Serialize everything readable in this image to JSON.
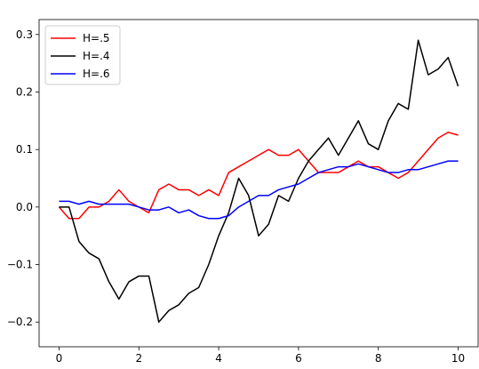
{
  "chart_data": {
    "type": "line",
    "x": [
      0,
      0.25,
      0.5,
      0.75,
      1,
      1.25,
      1.5,
      1.75,
      2,
      2.25,
      2.5,
      2.75,
      3,
      3.25,
      3.5,
      3.75,
      4,
      4.25,
      4.5,
      4.75,
      5,
      5.25,
      5.5,
      5.75,
      6,
      6.25,
      6.5,
      6.75,
      7,
      7.25,
      7.5,
      7.75,
      8,
      8.25,
      8.5,
      8.75,
      9,
      9.25,
      9.5,
      9.75,
      10
    ],
    "series": [
      {
        "name": "H=.5",
        "color": "#ff0000",
        "values": [
          0.0,
          -0.02,
          -0.02,
          0.0,
          0.0,
          0.01,
          0.03,
          0.01,
          0.0,
          -0.01,
          0.03,
          0.04,
          0.03,
          0.03,
          0.02,
          0.03,
          0.02,
          0.06,
          0.07,
          0.08,
          0.09,
          0.1,
          0.09,
          0.09,
          0.1,
          0.08,
          0.06,
          0.06,
          0.06,
          0.07,
          0.08,
          0.07,
          0.07,
          0.06,
          0.05,
          0.06,
          0.08,
          0.1,
          0.12,
          0.13,
          0.125
        ]
      },
      {
        "name": "H=.4",
        "color": "#000000",
        "values": [
          0.0,
          0.0,
          -0.06,
          -0.08,
          -0.09,
          -0.13,
          -0.16,
          -0.13,
          -0.12,
          -0.12,
          -0.2,
          -0.18,
          -0.17,
          -0.15,
          -0.14,
          -0.1,
          -0.05,
          -0.01,
          0.05,
          0.02,
          -0.05,
          -0.03,
          0.02,
          0.01,
          0.05,
          0.08,
          0.1,
          0.12,
          0.09,
          0.12,
          0.15,
          0.11,
          0.1,
          0.15,
          0.18,
          0.17,
          0.29,
          0.23,
          0.24,
          0.26,
          0.21
        ]
      },
      {
        "name": "H=.6",
        "color": "#0000ff",
        "values": [
          0.01,
          0.01,
          0.005,
          0.01,
          0.005,
          0.005,
          0.005,
          0.005,
          0.0,
          -0.005,
          -0.005,
          0.0,
          -0.01,
          -0.005,
          -0.015,
          -0.02,
          -0.02,
          -0.015,
          0.0,
          0.01,
          0.02,
          0.02,
          0.03,
          0.035,
          0.04,
          0.05,
          0.06,
          0.065,
          0.07,
          0.07,
          0.075,
          0.07,
          0.065,
          0.06,
          0.06,
          0.065,
          0.065,
          0.07,
          0.075,
          0.08,
          0.08
        ]
      }
    ],
    "xlim": [
      -0.5,
      10.5
    ],
    "ylim": [
      -0.243,
      0.326
    ],
    "xticks": [
      0,
      2,
      4,
      6,
      8,
      10
    ],
    "yticks": [
      {
        "value": -0.2,
        "label": "−0.2"
      },
      {
        "value": -0.1,
        "label": "−0.1"
      },
      {
        "value": 0,
        "label": "0.0"
      },
      0.1,
      0.2,
      0.3
    ],
    "legend": "upper-left"
  }
}
